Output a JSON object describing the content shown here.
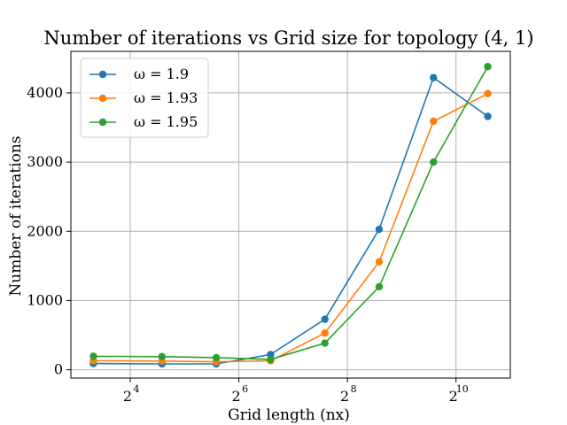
{
  "chart_data": {
    "type": "line",
    "title": "Number of iterations vs Grid size for topology (4, 1)",
    "xlabel": "Grid length (nx)",
    "ylabel": "Number of iterations",
    "x_scale": "log2",
    "x": [
      10,
      24,
      48,
      96,
      192,
      384,
      768,
      1536
    ],
    "xlim": [
      7.5,
      2048
    ],
    "ylim": [
      -120,
      4600
    ],
    "x_ticks": [
      {
        "value": 16,
        "base": "2",
        "exp": "4"
      },
      {
        "value": 64,
        "base": "2",
        "exp": "6"
      },
      {
        "value": 256,
        "base": "2",
        "exp": "8"
      },
      {
        "value": 1024,
        "base": "2",
        "exp": "10"
      }
    ],
    "y_ticks": [
      0,
      1000,
      2000,
      3000,
      4000
    ],
    "grid": true,
    "legend_position": "upper-left",
    "series": [
      {
        "name": "ω = 1.9",
        "color": "#1f77b4",
        "values": [
          90,
          85,
          85,
          220,
          730,
          2030,
          4220,
          3660
        ]
      },
      {
        "name": "ω = 1.93",
        "color": "#ff7f0e",
        "values": [
          130,
          125,
          115,
          130,
          530,
          1560,
          3590,
          3990
        ]
      },
      {
        "name": "ω = 1.95",
        "color": "#2ca02c",
        "values": [
          195,
          190,
          175,
          150,
          385,
          1200,
          3000,
          4380
        ]
      }
    ]
  }
}
